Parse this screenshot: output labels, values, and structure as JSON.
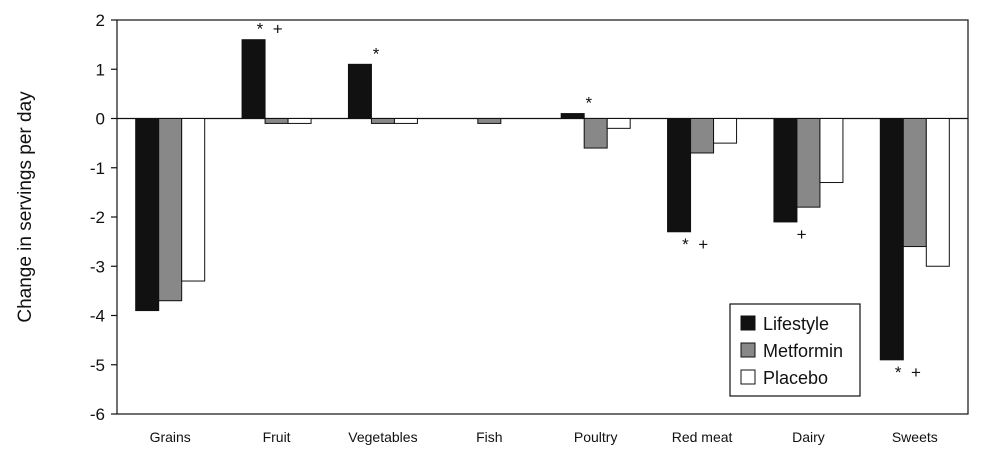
{
  "chart_data": {
    "type": "bar",
    "ylabel": "Change in servings per day",
    "xlabel": "",
    "ylim": [
      -6,
      2
    ],
    "yticks": [
      2,
      1,
      0,
      -1,
      -2,
      -3,
      -4,
      -5,
      -6
    ],
    "categories": [
      "Grains",
      "Fruit",
      "Vegetables",
      "Fish",
      "Poultry",
      "Red meat",
      "Dairy",
      "Sweets"
    ],
    "series": [
      {
        "name": "Lifestyle",
        "color": "#111111",
        "values": [
          -3.9,
          1.6,
          1.1,
          0,
          0.1,
          -2.3,
          -2.1,
          -4.9
        ]
      },
      {
        "name": "Metformin",
        "color": "#888888",
        "values": [
          -3.7,
          -0.1,
          -0.1,
          -0.1,
          -0.6,
          -0.7,
          -1.8,
          -2.6
        ]
      },
      {
        "name": "Placebo",
        "color": "#ffffff",
        "values": [
          -3.3,
          -0.1,
          -0.1,
          0,
          -0.2,
          -0.5,
          -1.3,
          -3.0
        ]
      }
    ],
    "annotations": [
      {
        "category": "Fruit",
        "text": "* +"
      },
      {
        "category": "Vegetables",
        "text": "*"
      },
      {
        "category": "Poultry",
        "text": "*"
      },
      {
        "category": "Red meat",
        "text": "* +"
      },
      {
        "category": "Dairy",
        "text": "+"
      },
      {
        "category": "Sweets",
        "text": "* +"
      }
    ],
    "legend_position": "bottom-right",
    "grid": false
  }
}
